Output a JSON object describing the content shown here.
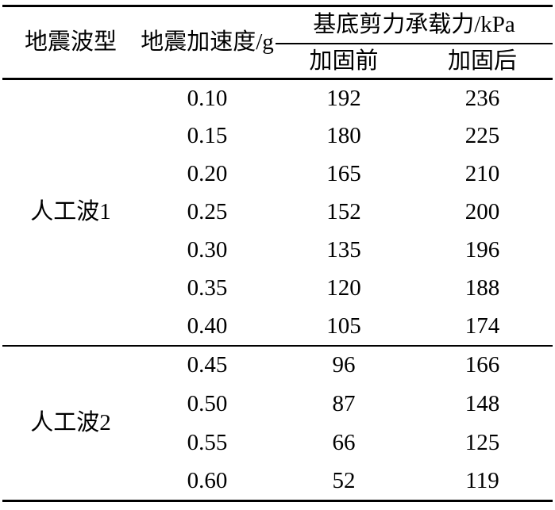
{
  "page": {
    "background_color": "#ffffff",
    "text_color": "#000000",
    "line_color": "#000000"
  },
  "table": {
    "headers": {
      "wave_type": "地震波型",
      "acceleration": "地震加速度/g",
      "bearing_capacity": "基底剪力承载力/kPa",
      "before": "加固前",
      "after": "加固后"
    },
    "groups": [
      {
        "wave": "人工波1",
        "rows": [
          {
            "acc": "0.10",
            "before": "192",
            "after": "236"
          },
          {
            "acc": "0.15",
            "before": "180",
            "after": "225"
          },
          {
            "acc": "0.20",
            "before": "165",
            "after": "210"
          },
          {
            "acc": "0.25",
            "before": "152",
            "after": "200"
          },
          {
            "acc": "0.30",
            "before": "135",
            "after": "196"
          },
          {
            "acc": "0.35",
            "before": "120",
            "after": "188"
          },
          {
            "acc": "0.40",
            "before": "105",
            "after": "174"
          }
        ]
      },
      {
        "wave": "人工波2",
        "rows": [
          {
            "acc": "0.45",
            "before": "96",
            "after": "166"
          },
          {
            "acc": "0.50",
            "before": "87",
            "after": "148"
          },
          {
            "acc": "0.55",
            "before": "66",
            "after": "125"
          },
          {
            "acc": "0.60",
            "before": "52",
            "after": "119"
          }
        ]
      }
    ]
  },
  "chart_data": {
    "type": "table",
    "column_headers": [
      "地震波型",
      "地震加速度/g",
      "基底剪力承载力/kPa — 加固前",
      "基底剪力承载力/kPa — 加固后"
    ],
    "rows": [
      [
        "人工波1",
        "0.10",
        192,
        236
      ],
      [
        "人工波1",
        "0.15",
        180,
        225
      ],
      [
        "人工波1",
        "0.20",
        165,
        210
      ],
      [
        "人工波1",
        "0.25",
        152,
        200
      ],
      [
        "人工波1",
        "0.30",
        135,
        196
      ],
      [
        "人工波1",
        "0.35",
        120,
        188
      ],
      [
        "人工波1",
        "0.40",
        105,
        174
      ],
      [
        "人工波2",
        "0.45",
        96,
        166
      ],
      [
        "人工波2",
        "0.50",
        87,
        148
      ],
      [
        "人工波2",
        "0.55",
        66,
        125
      ],
      [
        "人工波2",
        "0.60",
        52,
        119
      ]
    ]
  }
}
